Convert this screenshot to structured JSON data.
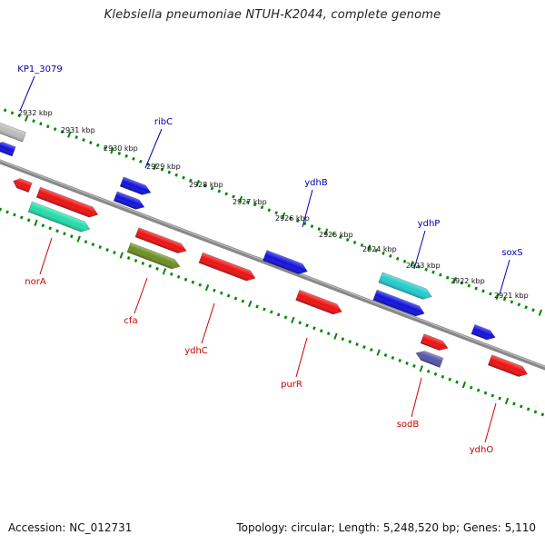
{
  "title": "Klebsiella pneumoniae NTUH-K2044, complete genome",
  "footer": {
    "accession": "Accession: NC_012731",
    "summary": "Topology: circular; Length: 5,248,520 bp; Genes: 5,110"
  },
  "colors": {
    "backbone": "#888888",
    "tick": "#008800",
    "label_top": "#0000aa",
    "label_bottom": "#cc0000",
    "red": "#ee1111",
    "blue": "#1111dd",
    "cyan": "#22cccc",
    "teal": "#22ddaa",
    "olive": "#6b8e23",
    "gray": "#bbbbbb",
    "slate": "#5555aa"
  },
  "kbp_labels": [
    "2932 kbp",
    "2931 kbp",
    "2930 kbp",
    "2929 kbp",
    "2928 kbp",
    "2927 kbp",
    "2926 kbp",
    "2925 kbp",
    "2924 kbp",
    "2923 kbp",
    "2922 kbp",
    "2921 kbp"
  ],
  "gene_labels_top": [
    "KP1_3079",
    "ribC",
    "ydhB",
    "ydhP",
    "soxS"
  ],
  "gene_labels_bottom": [
    "norA",
    "cfa",
    "ydhC",
    "purR",
    "sodB",
    "ydhO"
  ]
}
